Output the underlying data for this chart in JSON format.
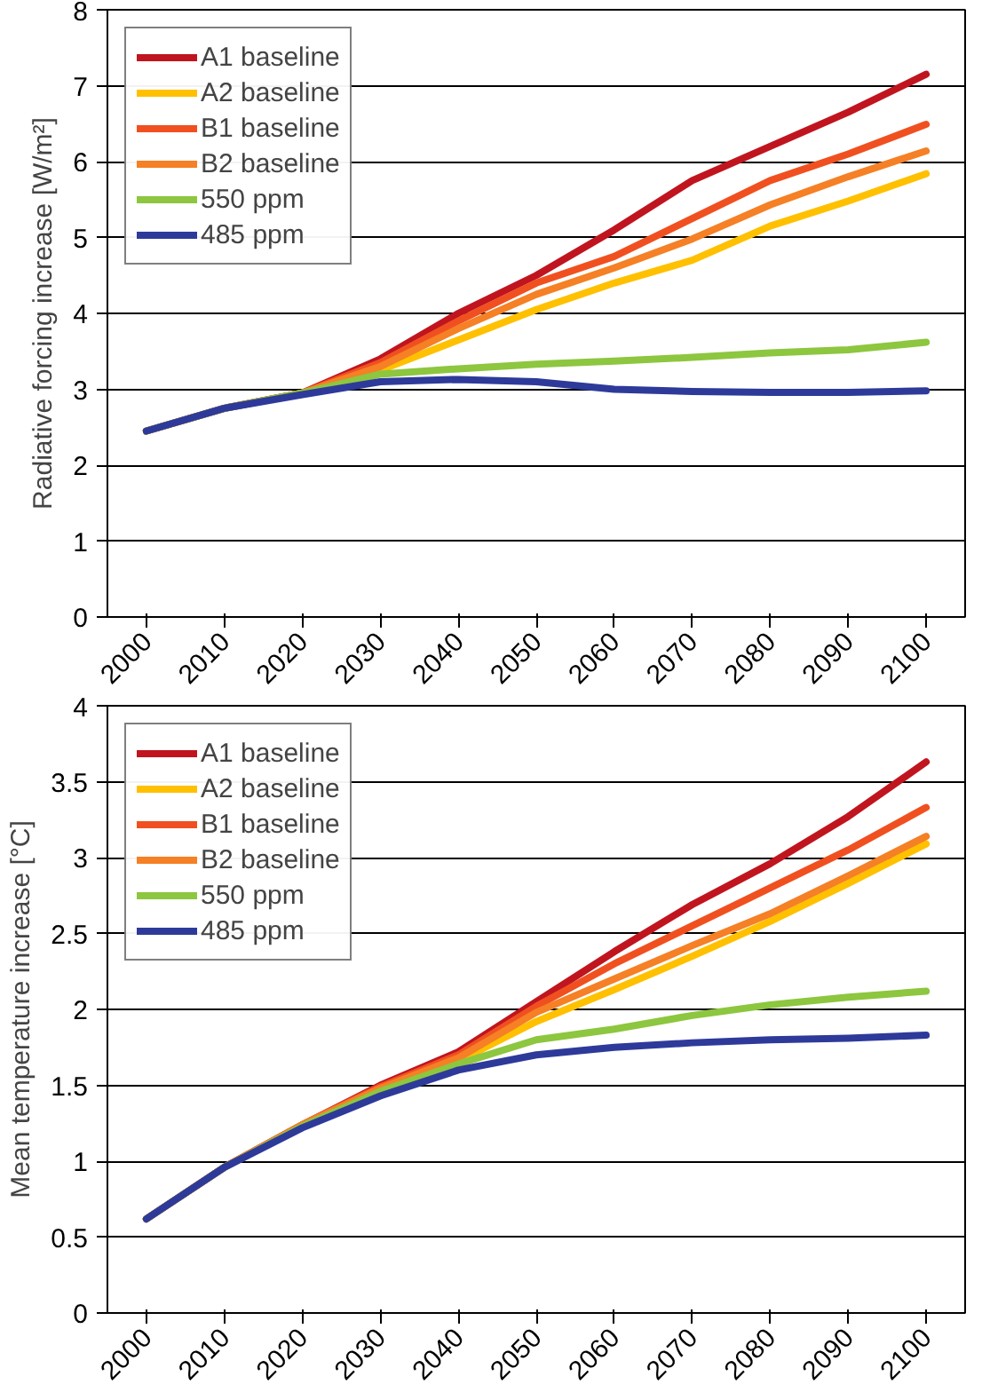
{
  "chart_data": [
    {
      "type": "line",
      "ylabel": "Radiative forcing increase [W/m²]",
      "categories": [
        "2000",
        "2010",
        "2020",
        "2030",
        "2040",
        "2050",
        "2060",
        "2070",
        "2080",
        "2090",
        "2100"
      ],
      "ylim": [
        0,
        8
      ],
      "yticks": [
        0,
        1,
        2,
        3,
        4,
        5,
        6,
        7,
        8
      ],
      "grid": "y",
      "legend": "top left",
      "marker": "none",
      "line_style": "solid",
      "series": [
        {
          "name": "A1 baseline",
          "color": "#c0151f",
          "values": [
            2.45,
            2.75,
            2.95,
            3.4,
            4.0,
            4.5,
            5.1,
            5.75,
            6.2,
            6.65,
            7.15
          ]
        },
        {
          "name": "A2 baseline",
          "color": "#ffc000",
          "values": [
            null,
            null,
            2.95,
            3.25,
            3.65,
            4.05,
            4.4,
            4.7,
            5.15,
            5.48,
            5.84
          ]
        },
        {
          "name": "B1 baseline",
          "color": "#f05020",
          "values": [
            2.45,
            2.75,
            2.95,
            3.35,
            3.9,
            4.4,
            4.75,
            5.25,
            5.75,
            6.1,
            6.49
          ]
        },
        {
          "name": "B2 baseline",
          "color": "#f58025",
          "values": [
            2.45,
            2.75,
            2.95,
            3.3,
            3.8,
            4.25,
            4.6,
            4.98,
            5.43,
            5.8,
            6.14
          ]
        },
        {
          "name": "550 ppm",
          "color": "#8dc63f",
          "values": [
            2.45,
            2.75,
            2.95,
            3.2,
            3.27,
            3.33,
            3.37,
            3.42,
            3.48,
            3.52,
            3.62
          ]
        },
        {
          "name": "485 ppm",
          "color": "#2e3a9a",
          "values": [
            2.45,
            2.75,
            2.93,
            3.1,
            3.13,
            3.1,
            3.0,
            2.97,
            2.96,
            2.96,
            2.98
          ]
        }
      ]
    },
    {
      "type": "line",
      "ylabel": "Mean temperature increase [°C]",
      "categories": [
        "2000",
        "2010",
        "2020",
        "2030",
        "2040",
        "2050",
        "2060",
        "2070",
        "2080",
        "2090",
        "2100"
      ],
      "ylim": [
        0,
        4
      ],
      "yticks": [
        0,
        0.5,
        1,
        1.5,
        2,
        2.5,
        3,
        3.5,
        4
      ],
      "grid": "y",
      "legend": "top left",
      "marker": "none",
      "line_style": "solid",
      "series": [
        {
          "name": "A1 baseline",
          "color": "#c0151f",
          "values": [
            0.62,
            0.96,
            1.24,
            1.5,
            1.72,
            2.05,
            2.38,
            2.69,
            2.96,
            3.27,
            3.63
          ]
        },
        {
          "name": "A2 baseline",
          "color": "#ffc000",
          "values": [
            null,
            null,
            null,
            1.47,
            1.66,
            1.92,
            2.13,
            2.35,
            2.58,
            2.83,
            3.09
          ]
        },
        {
          "name": "B1 baseline",
          "color": "#f05020",
          "values": [
            0.62,
            0.96,
            1.24,
            1.49,
            1.7,
            2.02,
            2.3,
            2.55,
            2.8,
            3.05,
            3.33
          ]
        },
        {
          "name": "B2 baseline",
          "color": "#f58025",
          "values": [
            0.62,
            0.96,
            1.24,
            1.48,
            1.68,
            1.98,
            2.2,
            2.42,
            2.63,
            2.88,
            3.14
          ]
        },
        {
          "name": "550 ppm",
          "color": "#8dc63f",
          "values": [
            0.62,
            0.96,
            1.23,
            1.46,
            1.64,
            1.8,
            1.87,
            1.96,
            2.03,
            2.08,
            2.12
          ]
        },
        {
          "name": "485 ppm",
          "color": "#2e3a9a",
          "values": [
            0.62,
            0.96,
            1.22,
            1.43,
            1.6,
            1.7,
            1.75,
            1.78,
            1.8,
            1.81,
            1.83
          ]
        }
      ]
    }
  ]
}
